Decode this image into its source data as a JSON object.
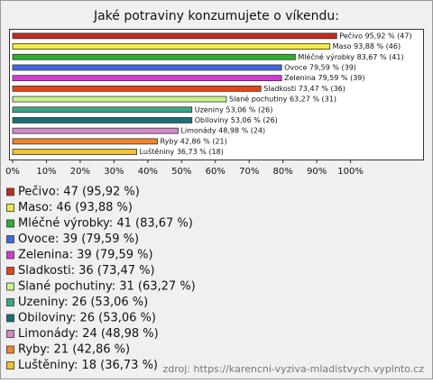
{
  "chart_data": {
    "type": "bar",
    "orientation": "horizontal",
    "title": "Jaké potraviny konzumujete o víkendu:",
    "categories": [
      "Pečivo",
      "Maso",
      "Mléčné výrobky",
      "Ovoce",
      "Zelenina",
      "Sladkosti",
      "Slané pochutiny",
      "Uzeniny",
      "Obiloviny",
      "Limonády",
      "Ryby",
      "Luštěniny"
    ],
    "values": [
      95.92,
      93.88,
      83.67,
      79.59,
      79.59,
      73.47,
      63.27,
      53.06,
      53.06,
      48.98,
      42.86,
      36.73
    ],
    "value_labels": [
      "Pečivo 95,92 % (47)",
      "Maso 93,88 % (46)",
      "Mléčné výrobky 83,67 % (41)",
      "Ovoce 79,59 % (39)",
      "Zelenina 79,59 % (39)",
      "Sladkosti 73,47 % (36)",
      "Slané pochutiny 63,27 % (31)",
      "Uzeniny 53,06 % (26)",
      "Obiloviny 53,06 % (26)",
      "Limonády 48,98 % (24)",
      "Ryby 42,86 % (21)",
      "Luštěniny 36,73 % (18)"
    ],
    "colors": [
      "#c22a1e",
      "#f2e84a",
      "#2fb02f",
      "#4466e6",
      "#d43cd4",
      "#e2481a",
      "#c8f48a",
      "#3aa884",
      "#1f6f74",
      "#d28ac8",
      "#f0842a",
      "#f2c230"
    ],
    "legend": [
      "Pečivo: 47 (95,92 %)",
      "Maso: 46 (93,88 %)",
      "Mléčné výrobky: 41 (83,67 %)",
      "Ovoce: 39 (79,59 %)",
      "Zelenina: 39 (79,59 %)",
      "Sladkosti: 36 (73,47 %)",
      "Slané pochutiny: 31 (63,27 %)",
      "Uzeniny: 26 (53,06 %)",
      "Obiloviny: 26 (53,06 %)",
      "Limonády: 24 (48,98 %)",
      "Ryby: 21 (42,86 %)",
      "Luštěniny: 18 (36,73 %)"
    ],
    "xlim": [
      0,
      122
    ],
    "xticks": [
      {
        "value": 0,
        "label": "0%"
      },
      {
        "value": 10,
        "label": "10%"
      },
      {
        "value": 20,
        "label": "20%"
      },
      {
        "value": 30,
        "label": "30%"
      },
      {
        "value": 40,
        "label": "40%"
      },
      {
        "value": 50,
        "label": "50%"
      },
      {
        "value": 60,
        "label": "60%"
      },
      {
        "value": 70,
        "label": "70%"
      },
      {
        "value": 80,
        "label": "80%"
      },
      {
        "value": 90,
        "label": "90%"
      },
      {
        "value": 100,
        "label": "100%"
      }
    ],
    "source": "zdroj: https://karencni-vyziva-mladistvych.vyplnto.cz"
  }
}
